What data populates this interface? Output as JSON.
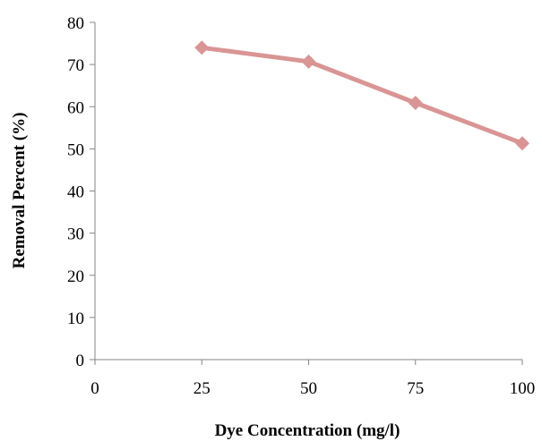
{
  "chart_data": {
    "type": "line",
    "title": "",
    "xlabel": "Dye Concentration (mg/l)",
    "ylabel": "Removal Percent (%)",
    "xlim": [
      0,
      100
    ],
    "ylim": [
      0,
      80
    ],
    "x_ticks": [
      0,
      25,
      50,
      75,
      100
    ],
    "y_ticks": [
      0,
      10,
      20,
      30,
      40,
      50,
      60,
      70,
      80
    ],
    "grid": false,
    "legend": "none",
    "series": [
      {
        "x": [
          25,
          50,
          75,
          100
        ],
        "values": [
          74,
          70.7,
          60.9,
          51.3
        ],
        "color": "#d99594",
        "marker": "diamond"
      }
    ]
  }
}
